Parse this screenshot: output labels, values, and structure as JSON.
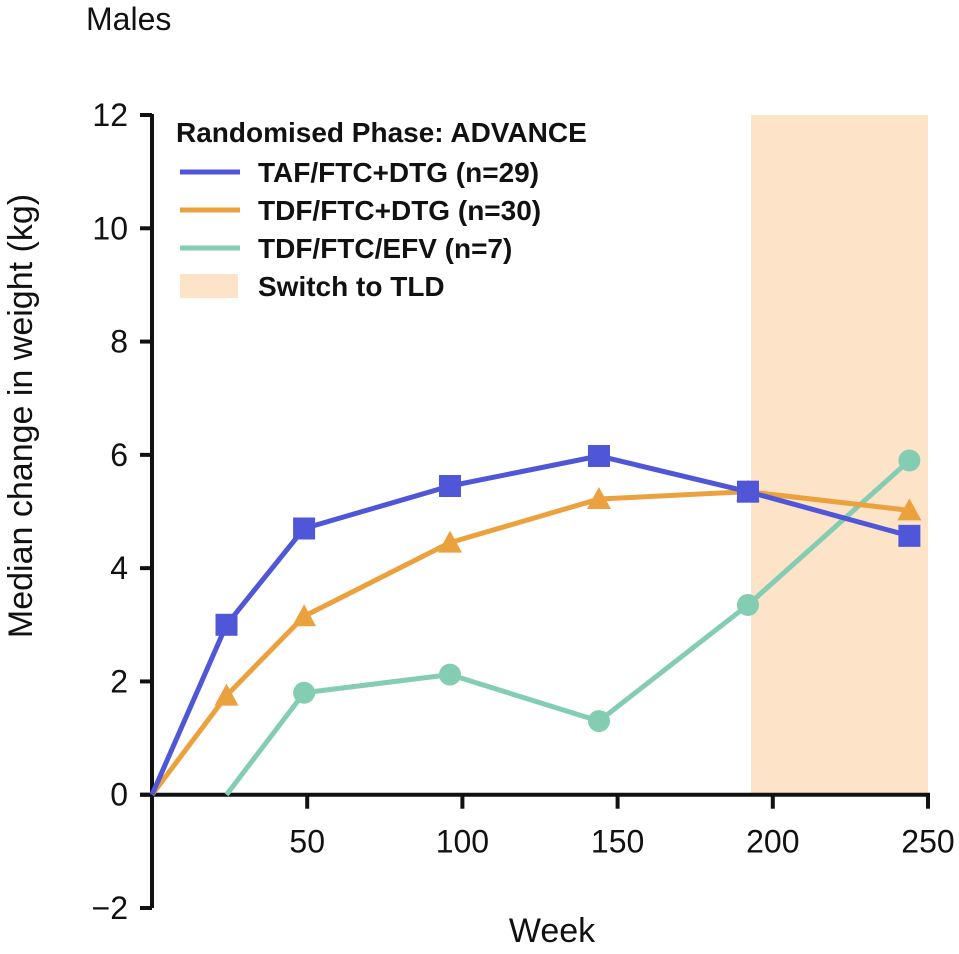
{
  "chart_data": {
    "type": "line",
    "title": "Males",
    "xlabel": "Week",
    "ylabel": "Median change in weight (kg)",
    "xlim": [
      0,
      250
    ],
    "ylim": [
      -2,
      12
    ],
    "x_ticks": [
      50,
      100,
      150,
      200,
      250
    ],
    "y_ticks": [
      -2,
      0,
      2,
      4,
      6,
      8,
      10,
      12
    ],
    "x_tick_labels": [
      "50",
      "100",
      "150",
      "200",
      "250"
    ],
    "y_tick_labels": [
      "−2",
      "0",
      "2",
      "4",
      "6",
      "8",
      "10",
      "12"
    ],
    "grid": false,
    "legend": {
      "title": "Randomised Phase: ADVANCE",
      "placement": "top-left",
      "shade_label": "Switch to TLD"
    },
    "shaded_region": {
      "x_start": 193,
      "x_end": 250,
      "label": "Switch to TLD",
      "color": "#FDE3C8"
    },
    "series": [
      {
        "name": "TAF/FTC+DTG (n=29)",
        "color": "#5056D8",
        "marker": "square",
        "x": [
          0,
          24,
          49,
          96,
          144,
          192,
          244
        ],
        "y": [
          0,
          3.0,
          4.7,
          5.45,
          5.98,
          5.35,
          4.57
        ]
      },
      {
        "name": "TDF/FTC+DTG (n=30)",
        "color": "#EBA13E",
        "marker": "triangle",
        "x": [
          0,
          24,
          49,
          96,
          144,
          192,
          244
        ],
        "y": [
          0,
          1.75,
          3.15,
          4.45,
          5.22,
          5.35,
          5.02
        ]
      },
      {
        "name": "TDF/FTC/EFV (n=7)",
        "color": "#84CDB2",
        "marker": "circle",
        "x": [
          24,
          49,
          96,
          144,
          192,
          244
        ],
        "y": [
          0,
          1.8,
          2.12,
          1.3,
          3.35,
          5.9
        ]
      }
    ]
  }
}
